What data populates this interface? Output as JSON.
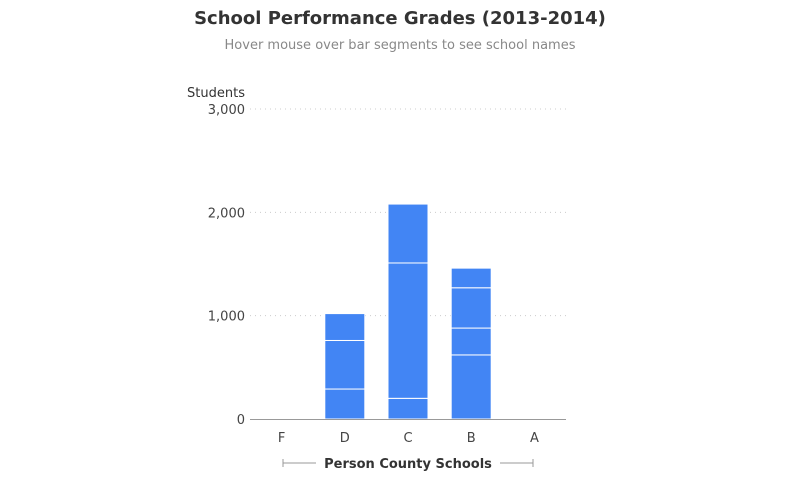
{
  "title": "School Performance Grades (2013-2014)",
  "subtitle": "Hover mouse over bar segments to see school names",
  "colors": {
    "bar": "#4285F4",
    "segment_divider": "#ffffff",
    "grid": "#cccccc",
    "axis": "#999999"
  },
  "chart_data": {
    "type": "bar",
    "stacked": true,
    "ylabel": "Students",
    "xlabel": "Person County Schools",
    "categories": [
      "F",
      "D",
      "C",
      "B",
      "A"
    ],
    "ylim": [
      0,
      3000
    ],
    "yticks": [
      "0",
      "1,000",
      "2,000",
      "3,000"
    ],
    "ytick_values": [
      0,
      1000,
      2000,
      3000
    ],
    "grid": true,
    "stacks": [
      {
        "category": "F",
        "segments": []
      },
      {
        "category": "D",
        "segments": [
          290,
          470,
          260
        ]
      },
      {
        "category": "C",
        "segments": [
          200,
          1310,
          570
        ]
      },
      {
        "category": "B",
        "segments": [
          620,
          260,
          390,
          190
        ]
      },
      {
        "category": "A",
        "segments": []
      }
    ]
  }
}
